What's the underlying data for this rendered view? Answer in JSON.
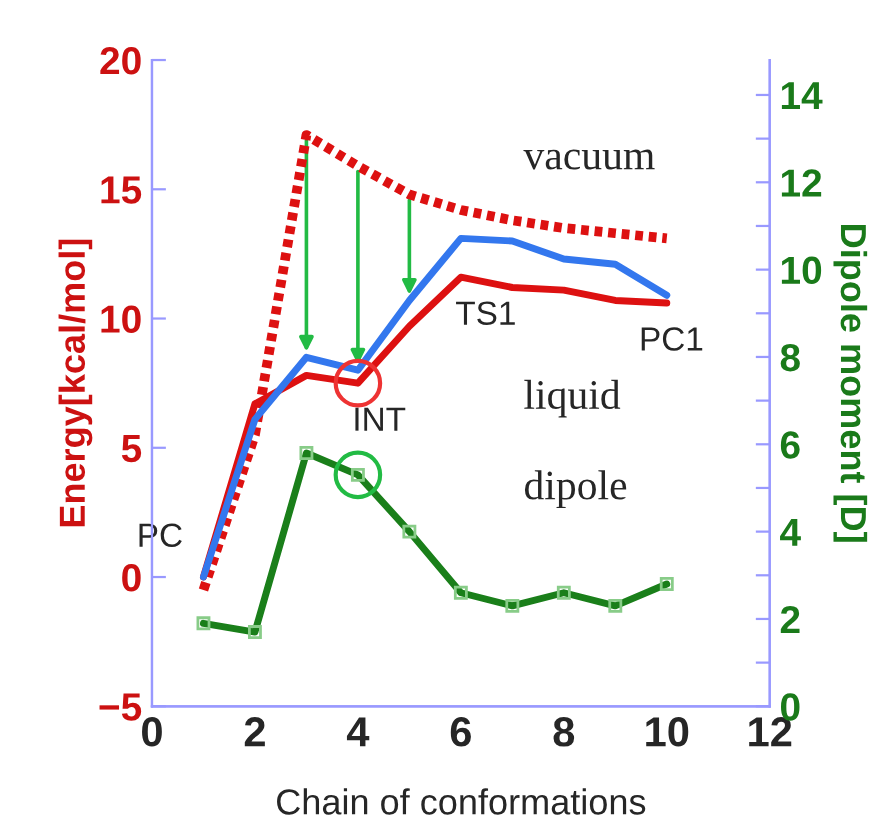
{
  "chart_data": {
    "type": "line",
    "xlabel": "Chain of conformations",
    "ylabel": "Energy[kcal/mol]",
    "y2label": "Dipole moment [D]",
    "x": [
      1,
      2,
      3,
      4,
      5,
      6,
      7,
      8,
      9,
      10
    ],
    "xlim": [
      0,
      12
    ],
    "xticks": [
      0,
      2,
      4,
      6,
      8,
      10,
      12
    ],
    "ylim": [
      -5,
      20
    ],
    "yticks": [
      -5,
      0,
      5,
      10,
      15,
      20
    ],
    "y2lim": [
      0,
      14.8
    ],
    "y2ticks": [
      0,
      {
        "value": 1,
        "label": null
      },
      2,
      {
        "value": 3,
        "label": null
      },
      4,
      {
        "value": 5,
        "label": null
      },
      6,
      {
        "value": 7,
        "label": null
      },
      8,
      {
        "value": 9,
        "label": null
      },
      10,
      {
        "value": 11,
        "label": null
      },
      12,
      {
        "value": 13,
        "label": null
      },
      14
    ],
    "grid": false,
    "legend": false,
    "series": [
      {
        "name": "vacuum",
        "color": "#dd1111",
        "line_style": "dotted",
        "marker": "none",
        "values": [
          -0.5,
          5.5,
          17.1,
          15.9,
          14.8,
          14.2,
          13.8,
          13.5,
          13.3,
          13.1
        ]
      },
      {
        "name": "liquid",
        "color": "#dd1111",
        "line_style": "solid",
        "marker": "none",
        "values": [
          0,
          6.7,
          7.8,
          7.5,
          9.7,
          11.6,
          11.2,
          11.1,
          10.7,
          10.6
        ]
      },
      {
        "color": "#3377ee",
        "line_style": "solid",
        "marker": "none",
        "values": [
          0,
          6.1,
          8.5,
          8.0,
          10.7,
          13.1,
          13.0,
          12.3,
          12.1,
          10.9
        ]
      },
      {
        "name": "dipole",
        "color": "#1a7f1a",
        "line_style": "solid",
        "marker": "square",
        "axis": "y2",
        "values": [
          1.9,
          1.7,
          5.8,
          5.3,
          4.0,
          2.6,
          2.3,
          2.6,
          2.3,
          2.8
        ]
      }
    ],
    "annotations": [
      {
        "text": "PC",
        "x": 1,
        "y": 0
      },
      {
        "text": "INT",
        "x": 4,
        "y": 7.5
      },
      {
        "text": "TS1",
        "x": 6,
        "y": 11.6
      },
      {
        "text": "PC1",
        "x": 10,
        "y": 10.6
      }
    ]
  }
}
